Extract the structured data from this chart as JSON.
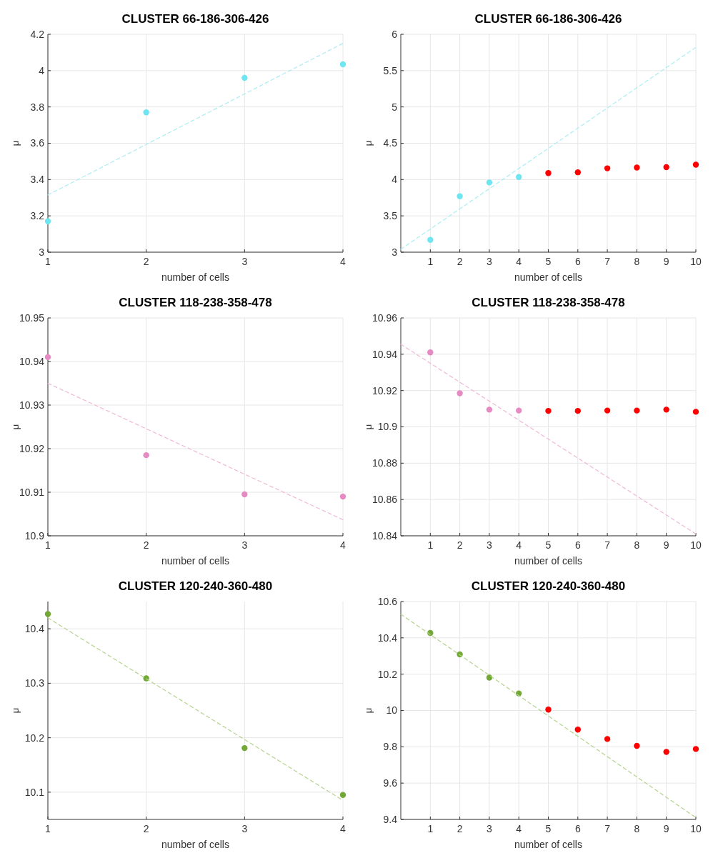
{
  "chart_data": [
    {
      "type": "scatter",
      "title": "CLUSTER 66-186-306-426",
      "xlabel": "number of cells",
      "ylabel": "μ",
      "x": [
        1,
        2,
        3,
        4
      ],
      "xlim": [
        1,
        4
      ],
      "xticks": [
        1,
        2,
        3,
        4
      ],
      "ylim": [
        3,
        4.2
      ],
      "yticks": [
        3,
        3.2,
        3.4,
        3.6,
        3.8,
        4,
        4.2
      ],
      "grid": true,
      "marker": "circle",
      "series": [
        {
          "color": "#6ee6f2",
          "values": [
            3.17,
            3.77,
            3.96,
            4.035
          ]
        },
        {
          "type": "line",
          "color": "#a8eef5",
          "line_style": "dashed",
          "marker": "none",
          "x": [
            1,
            4
          ],
          "values": [
            3.315,
            4.15
          ]
        }
      ]
    },
    {
      "type": "scatter",
      "title": "CLUSTER 66-186-306-426",
      "xlabel": "number of cells",
      "ylabel": "μ",
      "xlim": [
        0,
        10
      ],
      "xticks": [
        1,
        2,
        3,
        4,
        5,
        6,
        7,
        8,
        9,
        10
      ],
      "ylim": [
        3,
        6
      ],
      "yticks": [
        3,
        3.5,
        4,
        4.5,
        5,
        5.5,
        6
      ],
      "grid": true,
      "marker": "circle",
      "series": [
        {
          "color": "#6ee6f2",
          "x": [
            1,
            2,
            3,
            4
          ],
          "values": [
            3.17,
            3.77,
            3.96,
            4.035
          ]
        },
        {
          "color": "#ff0000",
          "x": [
            5,
            6,
            7,
            8,
            9,
            10
          ],
          "values": [
            4.09,
            4.1,
            4.155,
            4.165,
            4.17,
            4.205
          ]
        },
        {
          "type": "line",
          "color": "#a8eef5",
          "line_style": "dashed",
          "marker": "none",
          "x": [
            0,
            10
          ],
          "values": [
            3.04,
            5.82
          ]
        }
      ]
    },
    {
      "type": "scatter",
      "title": "CLUSTER 118-238-358-478",
      "xlabel": "number of cells",
      "ylabel": "μ",
      "x": [
        1,
        2,
        3,
        4
      ],
      "xlim": [
        1,
        4
      ],
      "xticks": [
        1,
        2,
        3,
        4
      ],
      "ylim": [
        10.9,
        10.95
      ],
      "yticks": [
        10.9,
        10.91,
        10.92,
        10.93,
        10.94,
        10.95
      ],
      "grid": true,
      "marker": "circle",
      "series": [
        {
          "color": "#e68ac3",
          "values": [
            10.941,
            10.9185,
            10.9095,
            10.909
          ]
        },
        {
          "type": "line",
          "color": "#f0b8d8",
          "line_style": "dashed",
          "marker": "none",
          "x": [
            1,
            4
          ],
          "values": [
            10.935,
            10.9037
          ]
        }
      ]
    },
    {
      "type": "scatter",
      "title": "CLUSTER 118-238-358-478",
      "xlabel": "number of cells",
      "ylabel": "μ",
      "xlim": [
        0,
        10
      ],
      "xticks": [
        1,
        2,
        3,
        4,
        5,
        6,
        7,
        8,
        9,
        10
      ],
      "ylim": [
        10.84,
        10.96
      ],
      "yticks": [
        10.84,
        10.86,
        10.88,
        10.9,
        10.92,
        10.94,
        10.96
      ],
      "grid": true,
      "marker": "circle",
      "series": [
        {
          "color": "#e68ac3",
          "x": [
            1,
            2,
            3,
            4
          ],
          "values": [
            10.941,
            10.9185,
            10.9095,
            10.909
          ]
        },
        {
          "color": "#ff0000",
          "x": [
            5,
            6,
            7,
            8,
            9,
            10
          ],
          "values": [
            10.9088,
            10.9088,
            10.909,
            10.909,
            10.9095,
            10.9083
          ]
        },
        {
          "type": "line",
          "color": "#f0b8d8",
          "line_style": "dashed",
          "marker": "none",
          "x": [
            0,
            10
          ],
          "values": [
            10.9455,
            10.841
          ]
        }
      ]
    },
    {
      "type": "scatter",
      "title": "CLUSTER 120-240-360-480",
      "xlabel": "number of cells",
      "ylabel": "μ",
      "x": [
        1,
        2,
        3,
        4
      ],
      "xlim": [
        1,
        4
      ],
      "xticks": [
        1,
        2,
        3,
        4
      ],
      "ylim": [
        10.05,
        10.45
      ],
      "yticks": [
        10.1,
        10.2,
        10.3,
        10.4
      ],
      "grid": true,
      "marker": "circle",
      "series": [
        {
          "color": "#72a834",
          "values": [
            10.427,
            10.309,
            10.181,
            10.095
          ]
        },
        {
          "type": "line",
          "color": "#b5d38f",
          "line_style": "dashed",
          "marker": "none",
          "x": [
            1,
            4
          ],
          "values": [
            10.42,
            10.085
          ]
        }
      ]
    },
    {
      "type": "scatter",
      "title": "CLUSTER 120-240-360-480",
      "xlabel": "number of cells",
      "ylabel": "μ",
      "xlim": [
        0,
        10
      ],
      "xticks": [
        1,
        2,
        3,
        4,
        5,
        6,
        7,
        8,
        9,
        10
      ],
      "ylim": [
        9.4,
        10.6
      ],
      "yticks": [
        9.4,
        9.6,
        9.8,
        10,
        10.2,
        10.4,
        10.6
      ],
      "grid": true,
      "marker": "circle",
      "series": [
        {
          "color": "#72a834",
          "x": [
            1,
            2,
            3,
            4
          ],
          "values": [
            10.427,
            10.309,
            10.181,
            10.094
          ]
        },
        {
          "color": "#ff0000",
          "x": [
            5,
            6,
            7,
            8,
            9,
            10
          ],
          "values": [
            10.005,
            9.895,
            9.843,
            9.805,
            9.772,
            9.788
          ]
        },
        {
          "type": "line",
          "color": "#b5d38f",
          "line_style": "dashed",
          "marker": "none",
          "x": [
            0,
            10
          ],
          "values": [
            10.53,
            9.41
          ]
        }
      ]
    }
  ]
}
